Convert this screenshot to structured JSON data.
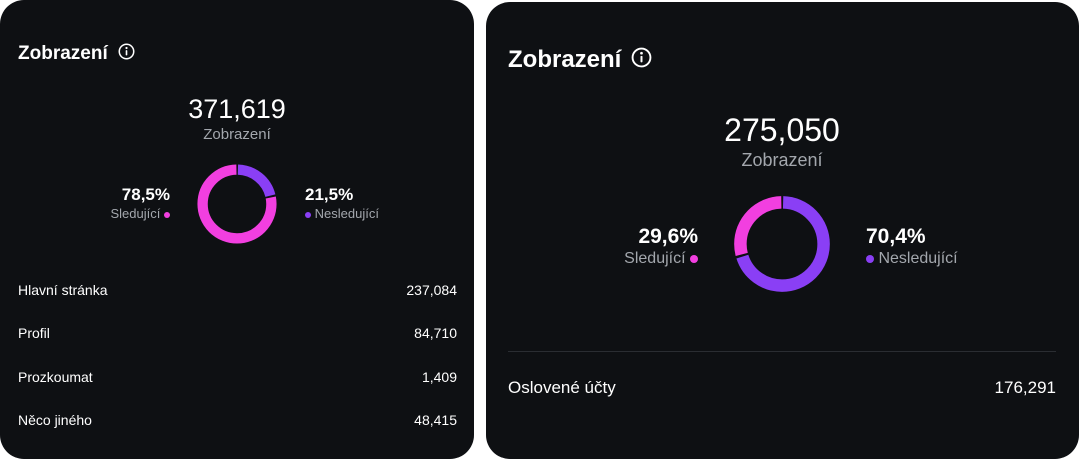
{
  "left_card": {
    "title": "Zobrazení",
    "total": "371,619",
    "total_label": "Zobrazení",
    "followers": {
      "percent": "78,5%",
      "label": "Sledující",
      "fraction": 0.785,
      "color": "#f23fe0"
    },
    "non_followers": {
      "percent": "21,5%",
      "label": "Nesledující",
      "fraction": 0.215,
      "color": "#8a3ff5"
    },
    "rows": [
      {
        "label": "Hlavní stránka",
        "value": "237,084"
      },
      {
        "label": "Profil",
        "value": "84,710"
      },
      {
        "label": "Prozkoumat",
        "value": "1,409"
      },
      {
        "label": "Něco jiného",
        "value": "48,415"
      }
    ]
  },
  "right_card": {
    "title": "Zobrazení",
    "total": "275,050",
    "total_label": "Zobrazení",
    "followers": {
      "percent": "29,6%",
      "label": "Sledující",
      "fraction": 0.296,
      "color": "#f23fe0"
    },
    "non_followers": {
      "percent": "70,4%",
      "label": "Nesledující",
      "fraction": 0.704,
      "color": "#8a3ff5"
    },
    "rows": [
      {
        "label": "Oslovené účty",
        "value": "176,291"
      }
    ]
  },
  "icons": {
    "info": "info-circle-icon"
  }
}
